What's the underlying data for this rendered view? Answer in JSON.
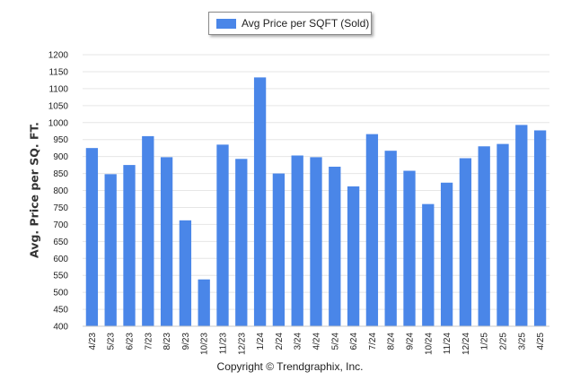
{
  "legend": {
    "label": "Avg Price per SQFT (Sold)"
  },
  "credit": "Copyright © Trendgraphix, Inc.",
  "colors": {
    "bar": "#4a86e8",
    "grid": "#e6e6e6",
    "axis": "#c8c8c8"
  },
  "chart_data": {
    "type": "bar",
    "title": "",
    "xlabel": "",
    "ylabel": "Avg. Price per SQ. FT.",
    "ylim": [
      400,
      1200
    ],
    "ytick_step": 50,
    "grid": true,
    "legend_position": "top-center",
    "categories": [
      "4/23",
      "5/23",
      "6/23",
      "7/23",
      "8/23",
      "9/23",
      "10/23",
      "11/23",
      "12/23",
      "1/24",
      "2/24",
      "3/24",
      "4/24",
      "5/24",
      "6/24",
      "7/24",
      "8/24",
      "9/24",
      "10/24",
      "11/24",
      "12/24",
      "1/25",
      "2/25",
      "3/25",
      "4/25"
    ],
    "series": [
      {
        "name": "Avg Price per SQFT (Sold)",
        "values": [
          925,
          848,
          875,
          960,
          898,
          712,
          538,
          935,
          893,
          1133,
          850,
          903,
          898,
          870,
          812,
          966,
          917,
          858,
          760,
          823,
          895,
          930,
          937,
          993,
          977
        ]
      }
    ]
  }
}
